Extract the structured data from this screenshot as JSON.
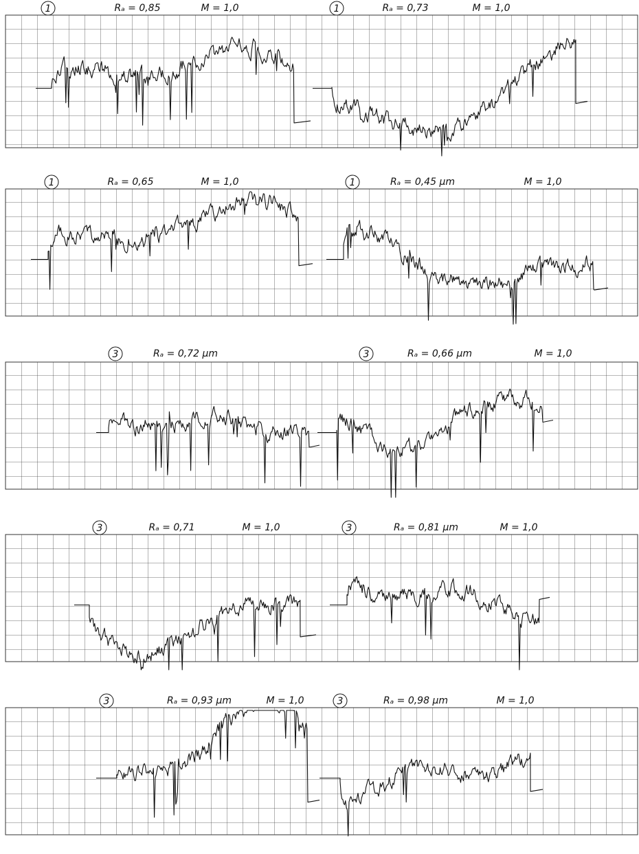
{
  "panels": [
    {
      "profiles": [
        {
          "number": "1",
          "ra": "Rₐ = 0,85",
          "m": "M = 1,0"
        },
        {
          "number": "1",
          "ra": "Rₐ = 0,73",
          "m": "M = 1,0"
        }
      ]
    },
    {
      "profiles": [
        {
          "number": "1",
          "ra": "Rₐ = 0,65",
          "m": "M = 1,0"
        },
        {
          "number": "1",
          "ra": "Rₐ = 0,45 μm",
          "m": "M = 1,0"
        }
      ]
    },
    {
      "profiles": [
        {
          "number": "3",
          "ra": "Rₐ = 0,72 μm"
        },
        {
          "number": "3",
          "ra": "Rₐ = 0,66 μm",
          "m": "M = 1,0"
        }
      ]
    },
    {
      "profiles": [
        {
          "number": "3",
          "ra": "Rₐ = 0,71",
          "m": "M = 1,0"
        },
        {
          "number": "3",
          "ra": "Rₐ = 0,81 μm",
          "m": "M = 1,0"
        }
      ]
    },
    {
      "profiles": [
        {
          "number": "3",
          "ra": "Rₐ = 0,93 μm",
          "m": "M = 1,0"
        },
        {
          "number": "3",
          "ra": "Rₐ = 0,98 μm",
          "m": "M = 1,0"
        }
      ]
    }
  ]
}
